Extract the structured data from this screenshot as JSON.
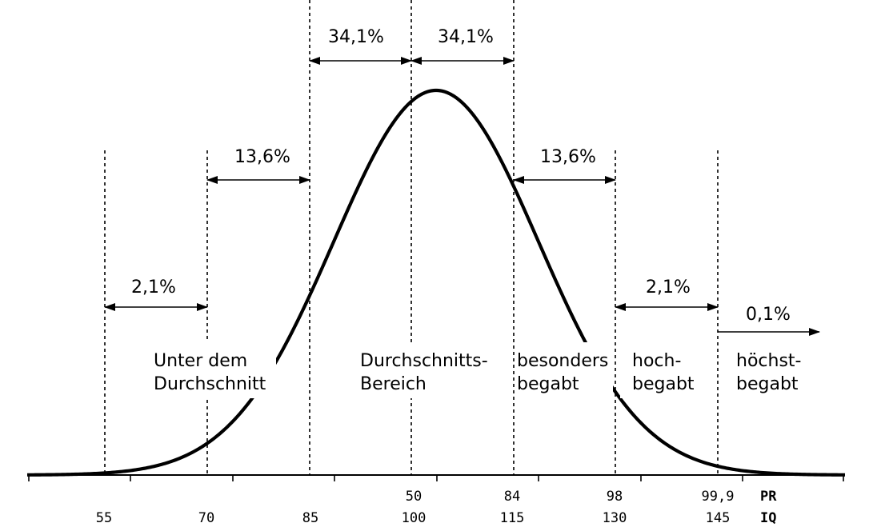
{
  "diagram": {
    "percentages": [
      {
        "id": "left-21",
        "label": "2,1%"
      },
      {
        "id": "left-136",
        "label": "13,6%"
      },
      {
        "id": "left-341",
        "label": "34,1%"
      },
      {
        "id": "right-341",
        "label": "34,1%"
      },
      {
        "id": "right-136",
        "label": "13,6%"
      },
      {
        "id": "right-21",
        "label": "2,1%"
      },
      {
        "id": "right-01",
        "label": "0,1%"
      }
    ],
    "categories": [
      {
        "id": "below-average",
        "lines": [
          "Unter dem",
          "Durchschnitt"
        ]
      },
      {
        "id": "average",
        "lines": [
          "Durchschnitts-",
          "Bereich"
        ]
      },
      {
        "id": "especially-gifted",
        "lines": [
          "besonders",
          "begabt"
        ]
      },
      {
        "id": "highly-gifted",
        "lines": [
          "hoch-",
          "begabt"
        ]
      },
      {
        "id": "most-gifted",
        "lines": [
          "höchst-",
          "begabt"
        ]
      }
    ],
    "pr_scale": {
      "name": "PR",
      "ticks": [
        "50",
        "84",
        "98",
        "99,9"
      ]
    },
    "iq_scale": {
      "name": "IQ",
      "ticks": [
        "55",
        "70",
        "85",
        "100",
        "115",
        "130",
        "145"
      ]
    }
  }
}
